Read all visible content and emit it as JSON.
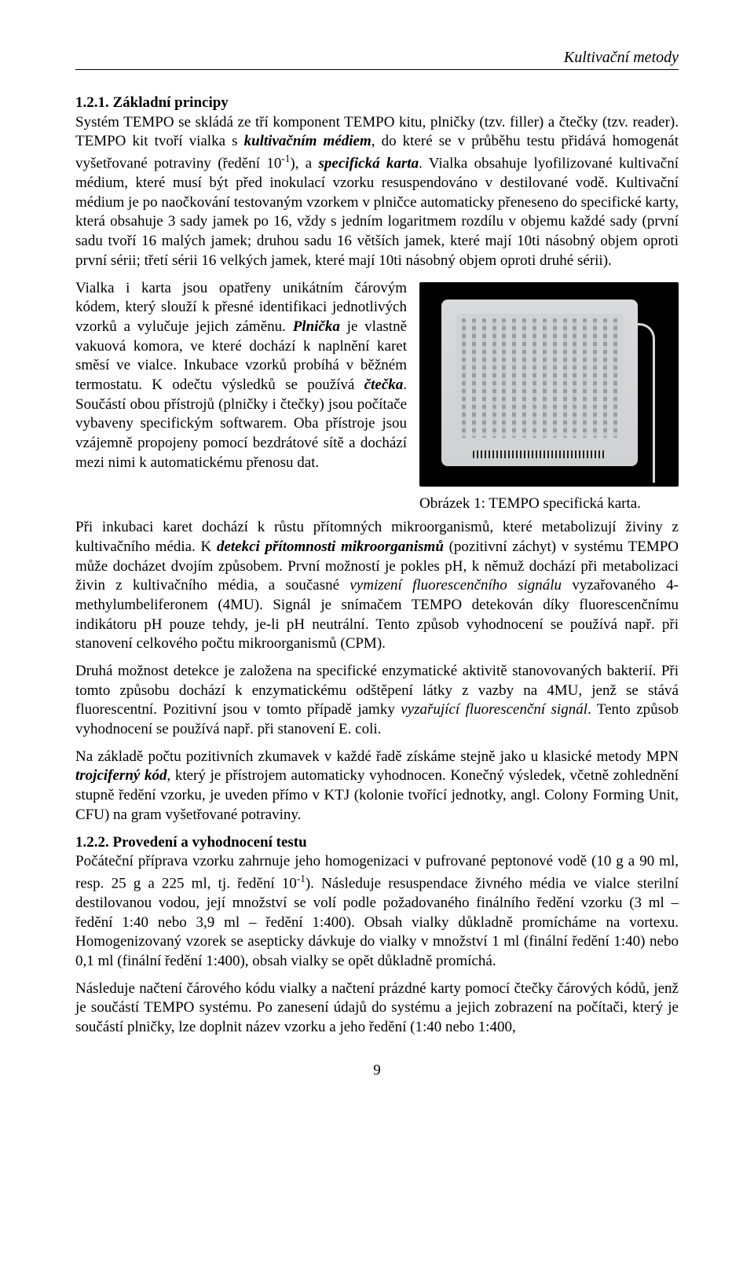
{
  "running_head": "Kultivační metody",
  "section1_heading": "1.2.1. Základní principy",
  "para1": "Systém TEMPO se skládá ze tří komponent TEMPO kitu, plničky (tzv. filler) a čtečky (tzv. reader). TEMPO kit tvoří vialka s kultivačním médiem, do které se v průběhu testu přidává homogenát vyšetřované potraviny (ředění 10⁻¹), a specifická karta. Vialka obsahuje lyofilizované kultivační médium, které musí být před inokulací vzorku resuspendováno v destilované vodě. Kultivační médium je po naočkování testovaným vzorkem v plničce automaticky přeneseno do specifické karty, která obsahuje 3 sady jamek po 16, vždy s jedním logaritmem rozdílu v objemu každé sady (první sadu tvoří 16 malých jamek; druhou sadu 16 větších jamek, které mají 10ti násobný objem oproti první sérii; třetí sérii 16 velkých jamek, které mají 10ti násobný objem oproti druhé sérii).",
  "para2": "Vialka i karta jsou opatřeny unikátním čárovým kódem, který slouží k přesné identifikaci jednotlivých vzorků a vylučuje jejich záměnu. Plnička je vlastně vakuová komora, ve které dochází k naplnění karet směsí ve vialce. Inkubace vzorků probíhá v běžném termostatu. K odečtu výsledků se používá čtečka. Součástí obou přístrojů (plničky i čtečky) jsou počítače vybaveny specifickým softwarem. Oba přístroje jsou vzájemně propojeny pomocí bezdrátové sítě a dochází mezi nimi k automatickému přenosu dat.",
  "caption": "Obrázek 1: TEMPO specifická karta.",
  "para3": "Při inkubaci karet dochází k růstu přítomných mikroorganismů, které metabolizují živiny z kultivačního média. K detekci přítomnosti mikroorganismů (pozitivní záchyt) v systému TEMPO může docházet dvojím způsobem. První možností je pokles pH, k němuž dochází při metabolizaci živin z kultivačního média, a současné vymizení fluorescenčního signálu vyzařovaného 4-methylumbeliferonem (4MU). Signál je snímačem TEMPO detekován díky fluorescenčnímu indikátoru pH pouze tehdy, je-li pH neutrální. Tento způsob vyhodnocení se používá např. při stanovení celkového počtu mikroorganismů (CPM).",
  "para4": "Druhá možnost detekce je založena na specifické enzymatické aktivitě stanovovaných bakterií. Při tomto způsobu dochází k enzymatickému odštěpení látky z vazby na 4MU, jenž se stává fluorescentní. Pozitivní jsou v tomto případě jamky vyzařující fluorescenční signál. Tento způsob vyhodnocení se používá např. při stanovení E. coli.",
  "para5": "Na základě počtu pozitivních zkumavek v každé řadě získáme stejně jako u klasické metody MPN trojciferný kód, který je přístrojem automaticky vyhodnocen. Konečný výsledek, včetně zohlednění stupně ředění vzorku, je uveden přímo v KTJ (kolonie tvořící jednotky, angl. Colony Forming Unit, CFU) na gram vyšetřované potraviny.",
  "section2_heading": "1.2.2. Provedení a vyhodnocení testu",
  "para6": "Počáteční příprava vzorku zahrnuje jeho homogenizaci v pufrované peptonové vodě (10 g a 90 ml, resp. 25 g a 225 ml, tj. ředění 10⁻¹). Následuje resuspendace živného média ve vialce sterilní destilovanou vodou, její množství se volí podle požadovaného finálního ředění vzorku (3 ml – ředění 1:40 nebo 3,9 ml – ředění 1:400). Obsah vialky důkladně promícháme na vortexu. Homogenizovaný vzorek se asepticky dávkuje do vialky v množství 1 ml (finální ředění 1:40) nebo 0,1 ml (finální ředění 1:400), obsah vialky se opět důkladně promíchá.",
  "para7": "Následuje načtení čárového kódu vialky a načtení prázdné karty pomocí čtečky čárových kódů, jenž je součástí TEMPO systému. Po zanesení údajů do systému a jejich zobrazení na počítači, který je součástí plničky, lze doplnit název vzorku a jeho ředění (1:40 nebo 1:400,",
  "page_number": "9"
}
